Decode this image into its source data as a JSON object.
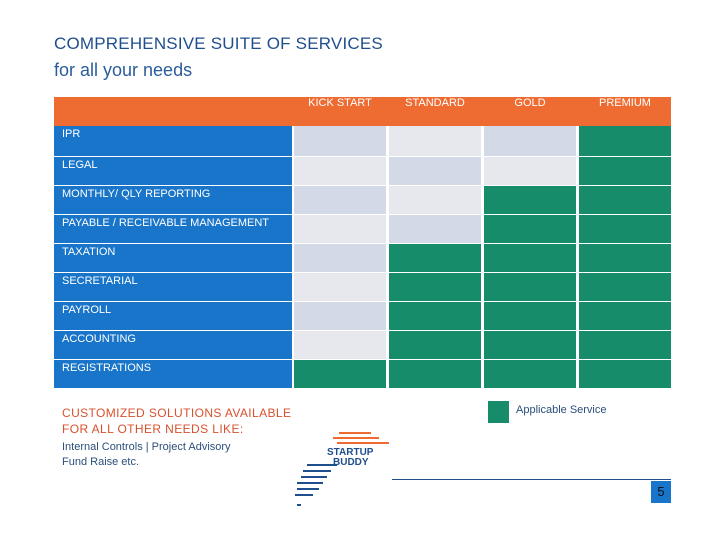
{
  "header": {
    "title": "COMPREHENSIVE SUITE OF  SERVICES",
    "subtitle": "for all your needs"
  },
  "table": {
    "columns": [
      "KICK START",
      "STANDARD",
      "GOLD",
      "PREMIUM"
    ],
    "rows": [
      {
        "label": "IPR",
        "cells": [
          "light",
          "light",
          "light",
          "applicable"
        ]
      },
      {
        "label": "LEGAL",
        "cells": [
          "light",
          "light",
          "light",
          "applicable"
        ]
      },
      {
        "label": "MONTHLY/ QLY REPORTING",
        "cells": [
          "light",
          "light",
          "applicable",
          "applicable"
        ]
      },
      {
        "label": "PAYABLE / RECEIVABLE  MANAGEMENT",
        "cells": [
          "light",
          "light",
          "applicable",
          "applicable"
        ]
      },
      {
        "label": "TAXATION",
        "cells": [
          "light",
          "applicable",
          "applicable",
          "applicable"
        ]
      },
      {
        "label": "SECRETARIAL",
        "cells": [
          "light",
          "applicable",
          "applicable",
          "applicable"
        ]
      },
      {
        "label": "PAYROLL",
        "cells": [
          "light",
          "applicable",
          "applicable",
          "applicable"
        ]
      },
      {
        "label": "ACCOUNTING",
        "cells": [
          "light",
          "applicable",
          "applicable",
          "applicable"
        ]
      },
      {
        "label": "REGISTRATIONS",
        "cells": [
          "applicable",
          "applicable",
          "applicable",
          "applicable"
        ]
      }
    ]
  },
  "custom": {
    "title_line1": "CUSTOMIZED SOLUTIONS AVAILABLE",
    "title_line2": "FOR ALL OTHER NEEDS  LIKE:",
    "sub_line1": "Internal Controls | Project Advisory",
    "sub_line2": "Fund Raise etc."
  },
  "legend": {
    "label": "Applicable Service"
  },
  "logo": {
    "text_line1": "STARTUP",
    "text_line2": "BUDDY"
  },
  "footer": {
    "page_number": "5"
  },
  "colors": {
    "header_bar": "#ee6b32",
    "row_label": "#1975c9",
    "applicable": "#178c6a",
    "title": "#1f4e8c",
    "accent_text": "#d8512c"
  }
}
